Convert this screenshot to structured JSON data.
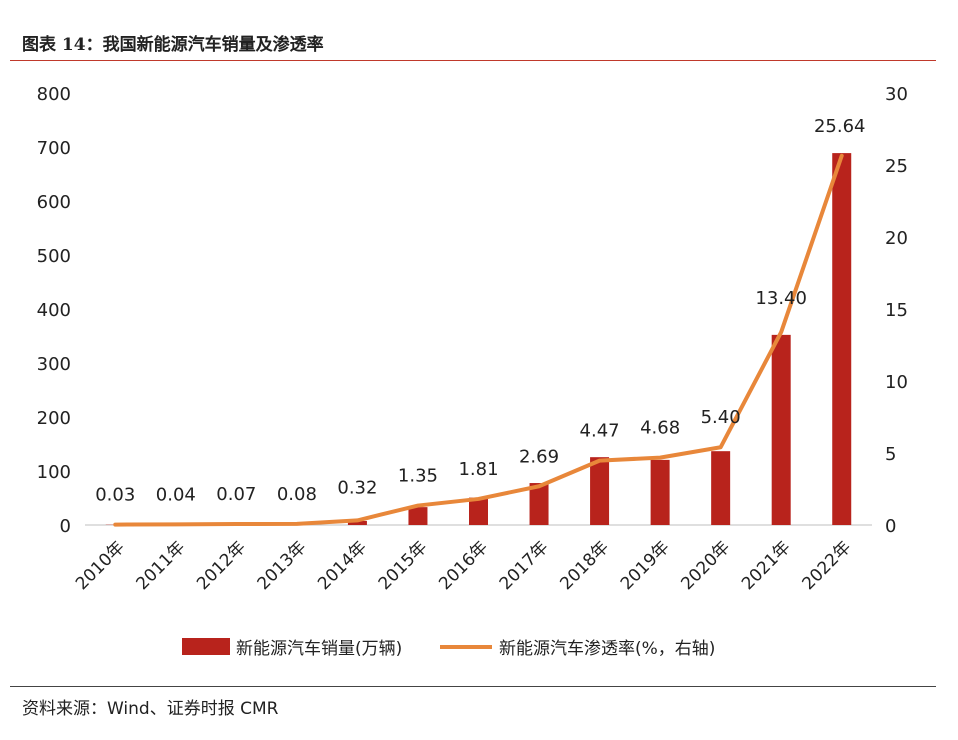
{
  "header": {
    "title": "图表 14：我国新能源汽车销量及渗透率"
  },
  "footer": {
    "source_label": "资料来源：",
    "source_text": "Wind、证券时报 CMR"
  },
  "colors": {
    "bar": "#b8231c",
    "line": "#e8873a",
    "title_rule": "#c0392b"
  },
  "chart_data": {
    "type": "bar",
    "categories": [
      "2010年",
      "2011年",
      "2012年",
      "2013年",
      "2014年",
      "2015年",
      "2016年",
      "2017年",
      "2018年",
      "2019年",
      "2020年",
      "2021年",
      "2022年"
    ],
    "series": [
      {
        "name": "新能源汽车销量(万辆)",
        "type": "bar",
        "axis": "left",
        "values": [
          0.5,
          0.8,
          1.3,
          1.8,
          7.5,
          33.1,
          50.7,
          77.7,
          125.6,
          120.6,
          136.7,
          352.1,
          688.7
        ]
      },
      {
        "name": "新能源汽车渗透率(%，右轴)",
        "type": "line",
        "axis": "right",
        "values": [
          0.03,
          0.04,
          0.07,
          0.08,
          0.32,
          1.35,
          1.81,
          2.69,
          4.47,
          4.68,
          5.4,
          13.4,
          25.64
        ],
        "labels": [
          "0.03",
          "0.04",
          "0.07",
          "0.08",
          "0.32",
          "1.35",
          "1.81",
          "2.69",
          "4.47",
          "4.68",
          "5.40",
          "13.40",
          "25.64"
        ]
      }
    ],
    "y_left": {
      "lim": [
        0,
        800
      ],
      "ticks": [
        "0",
        "100",
        "200",
        "300",
        "400",
        "500",
        "600",
        "700",
        "800"
      ]
    },
    "y_right": {
      "lim": [
        0,
        30
      ],
      "ticks": [
        "0",
        "5",
        "10",
        "15",
        "20",
        "25",
        "30"
      ]
    },
    "grid": false,
    "legend_position": "bottom"
  }
}
